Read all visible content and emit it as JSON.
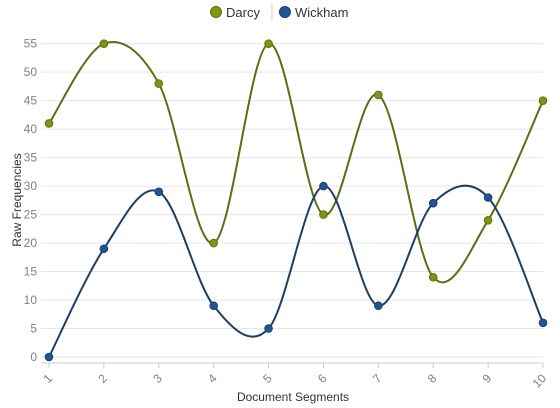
{
  "chart_data": {
    "type": "line",
    "title": "",
    "xlabel": "Document Segments",
    "ylabel": "Raw Frequencies",
    "x": [
      1,
      2,
      3,
      4,
      5,
      6,
      7,
      8,
      9,
      10
    ],
    "xlim": [
      1,
      10
    ],
    "ylim": [
      0,
      56
    ],
    "yticks": [
      0,
      5,
      10,
      15,
      20,
      25,
      30,
      35,
      40,
      45,
      50,
      55
    ],
    "grid": true,
    "legend": "top-center",
    "series": [
      {
        "name": "Darcy",
        "color": "#7a9a0e",
        "line_color": "#5c6e14",
        "values": [
          41,
          55,
          48,
          20,
          55,
          25,
          46,
          14,
          24,
          45
        ]
      },
      {
        "name": "Wickham",
        "color": "#1f5597",
        "line_color": "#1d3f66",
        "values": [
          0,
          19,
          29,
          9,
          5,
          30,
          9,
          27,
          28,
          6
        ]
      }
    ]
  }
}
